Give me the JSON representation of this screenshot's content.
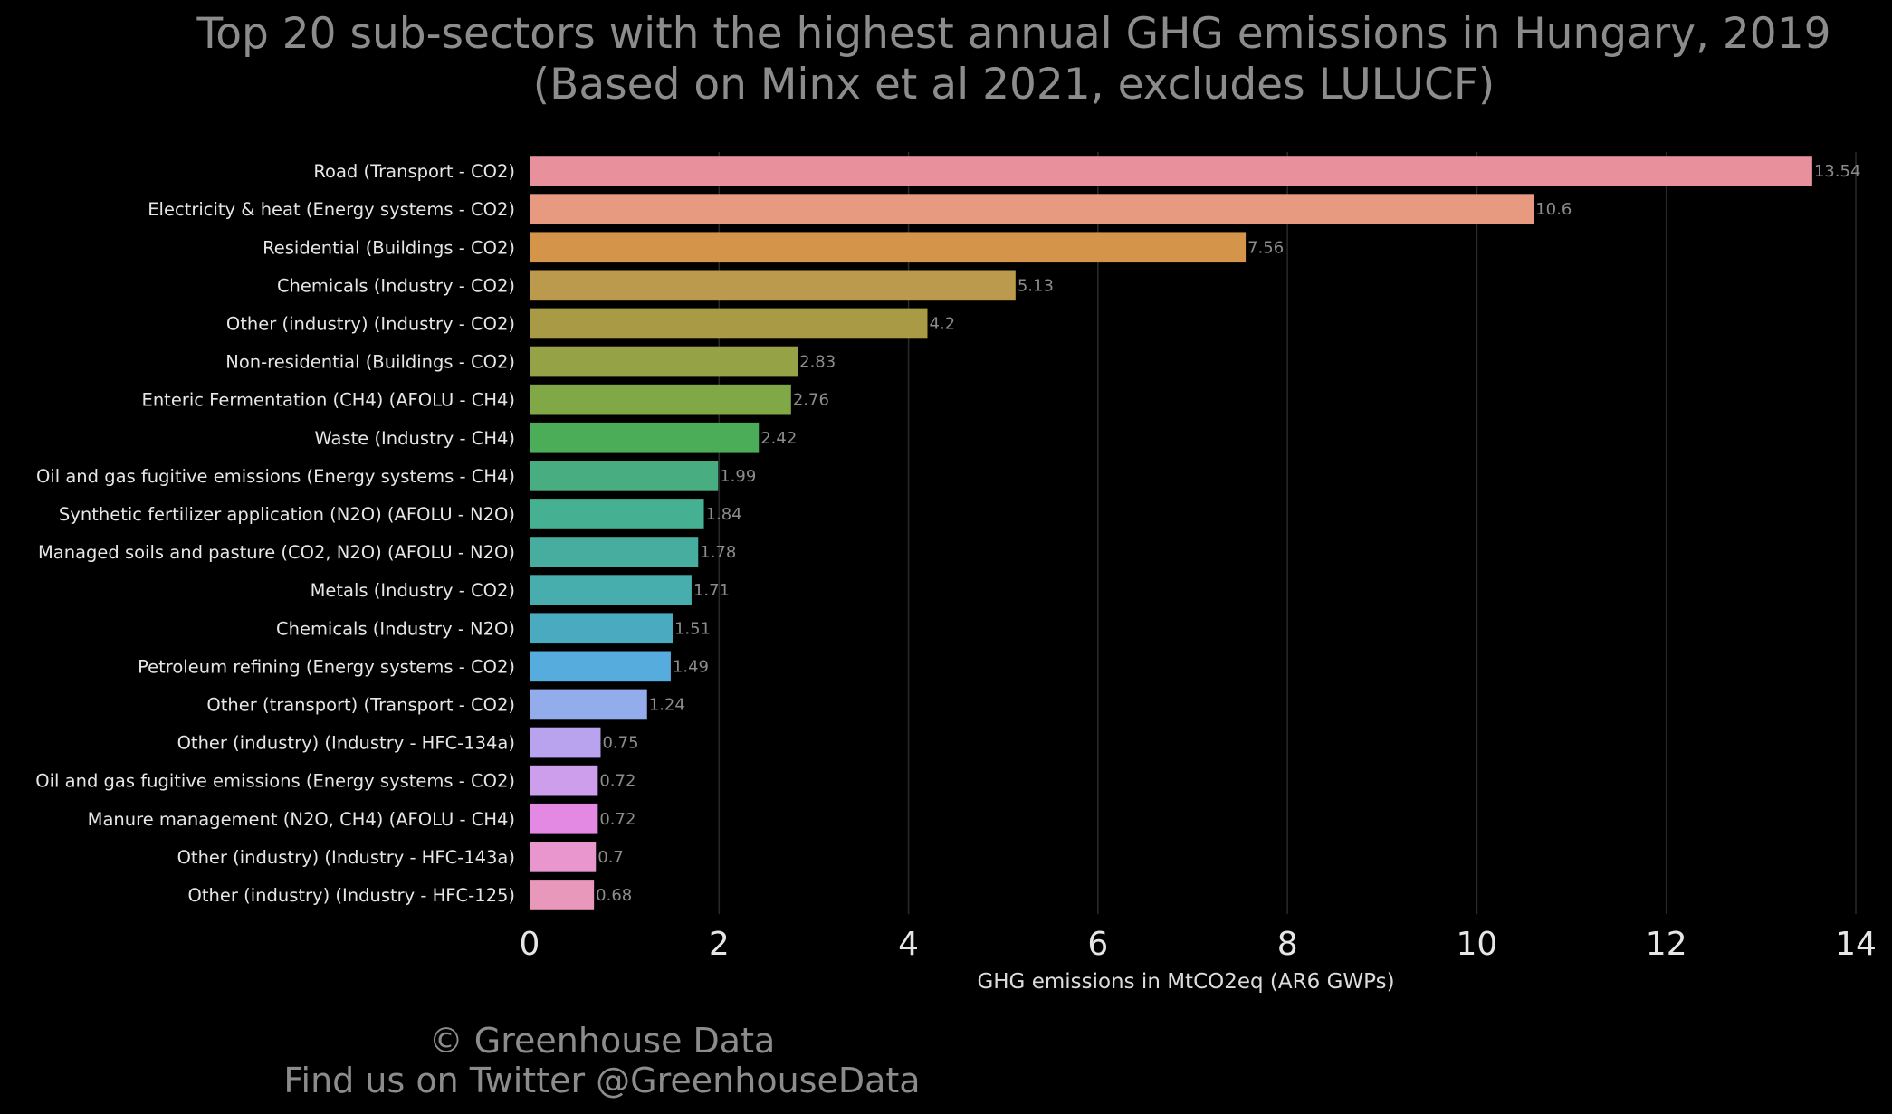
{
  "title_line1": "Top 20 sub-sectors with the highest annual GHG emissions in Hungary, 2019",
  "title_line2": "(Based on Minx et al 2021, excludes LULUCF)",
  "footer_line1": "© Greenhouse Data",
  "footer_line2": "Find us on Twitter @GreenhouseData",
  "chart_data": {
    "type": "bar",
    "orientation": "horizontal",
    "xlabel": "GHG emissions in MtCO2eq (AR6 GWPs)",
    "ylabel": "",
    "xlim": [
      0,
      14
    ],
    "xticks": [
      0,
      2,
      4,
      6,
      8,
      10,
      12,
      14
    ],
    "grid": "vertical",
    "background": "#000000",
    "categories": [
      "Road (Transport - CO2)",
      "Electricity & heat (Energy systems - CO2)",
      "Residential (Buildings - CO2)",
      "Chemicals (Industry - CO2)",
      "Other (industry) (Industry - CO2)",
      "Non-residential (Buildings - CO2)",
      "Enteric Fermentation (CH4) (AFOLU - CH4)",
      "Waste (Industry - CH4)",
      "Oil and gas fugitive emissions (Energy systems - CH4)",
      "Synthetic fertilizer application (N2O) (AFOLU - N2O)",
      "Managed soils and pasture (CO2, N2O) (AFOLU - N2O)",
      "Metals (Industry - CO2)",
      "Chemicals (Industry - N2O)",
      "Petroleum refining (Energy systems - CO2)",
      "Other (transport) (Transport - CO2)",
      "Other (industry) (Industry - HFC-134a)",
      "Oil and gas fugitive emissions (Energy systems - CO2)",
      "Manure management (N2O, CH4) (AFOLU - CH4)",
      "Other (industry) (Industry - HFC-143a)",
      "Other (industry) (Industry - HFC-125)"
    ],
    "values": [
      13.54,
      10.6,
      7.56,
      5.13,
      4.2,
      2.83,
      2.76,
      2.42,
      1.99,
      1.84,
      1.78,
      1.71,
      1.51,
      1.49,
      1.24,
      0.75,
      0.72,
      0.72,
      0.7,
      0.68
    ],
    "value_labels": [
      "13.54",
      "10.6",
      "7.56",
      "5.13",
      "4.2",
      "2.83",
      "2.76",
      "2.42",
      "1.99",
      "1.84",
      "1.78",
      "1.71",
      "1.51",
      "1.49",
      "1.24",
      "0.75",
      "0.72",
      "0.72",
      "0.7",
      "0.68"
    ],
    "colors": [
      "#e8909c",
      "#e89a80",
      "#d4954a",
      "#bb9a4e",
      "#a99a45",
      "#95a245",
      "#80a846",
      "#4bad57",
      "#48ad80",
      "#46b093",
      "#46ad9f",
      "#47adad",
      "#4aaac0",
      "#56acdc",
      "#93aceb",
      "#b9a3ef",
      "#cc9eeb",
      "#e389e4",
      "#e896cd",
      "#e898bb"
    ]
  }
}
